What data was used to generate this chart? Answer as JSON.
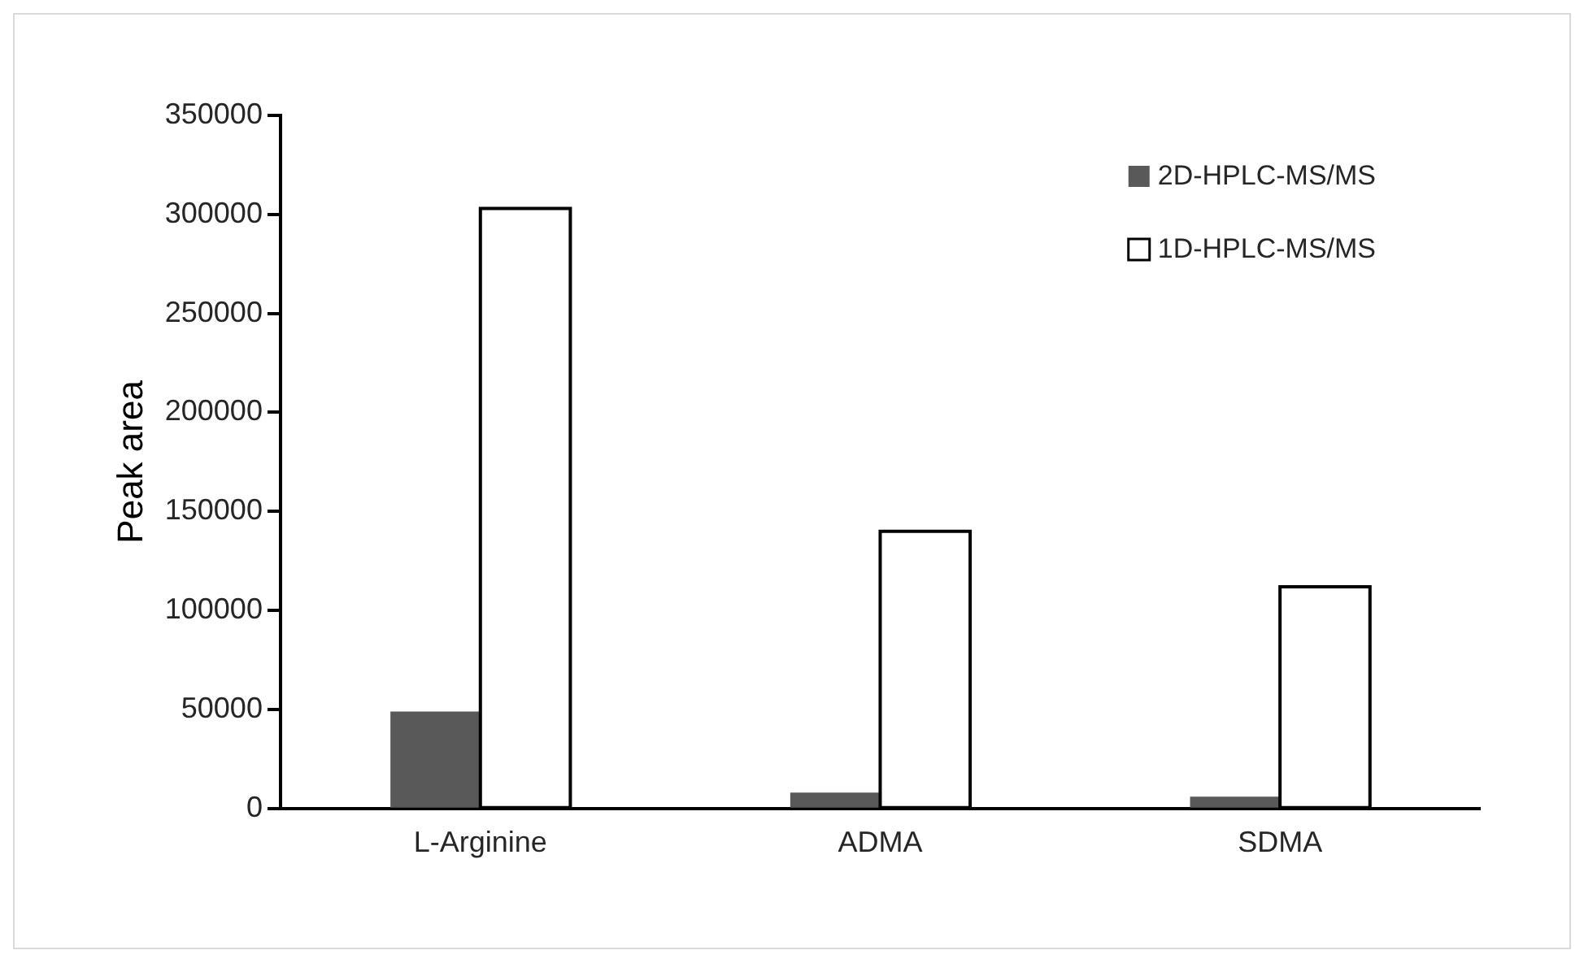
{
  "chart_data": {
    "type": "bar",
    "ylabel": "Peak area",
    "categories": [
      "L-Arginine",
      "ADMA",
      "SDMA"
    ],
    "series": [
      {
        "name": "2D-HPLC-MS/MS",
        "color": "#595959",
        "values": [
          49000,
          8000,
          6000
        ]
      },
      {
        "name": "1D-HPLC-MS/MS",
        "color": "#ffffff",
        "values": [
          303000,
          140000,
          112000
        ]
      }
    ],
    "ylim": [
      0,
      350000
    ],
    "yticks": [
      0,
      50000,
      100000,
      150000,
      200000,
      250000,
      300000,
      350000
    ],
    "grid": false,
    "legend": "top right"
  }
}
